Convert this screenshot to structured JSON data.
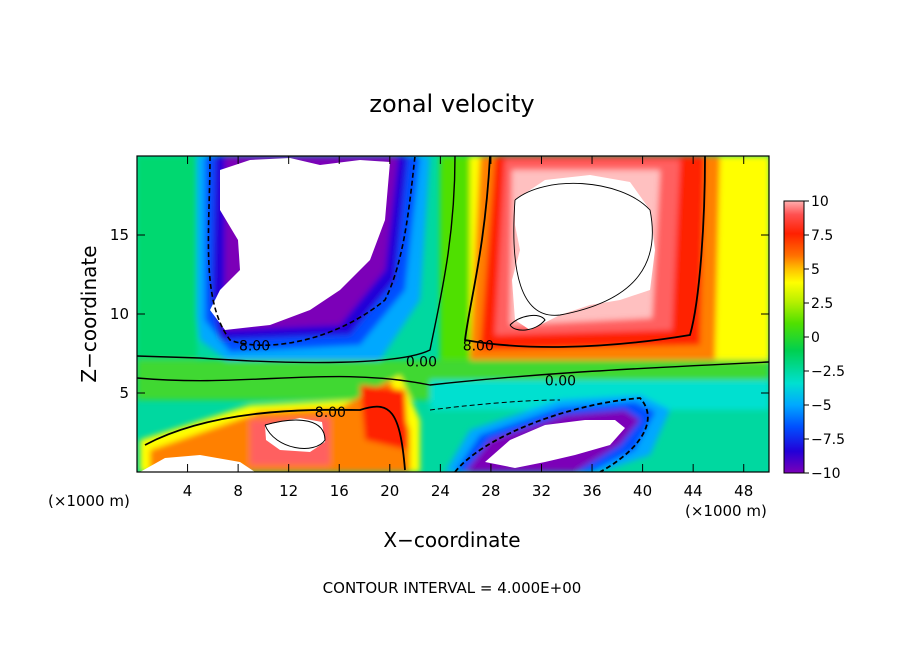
{
  "title": "zonal velocity",
  "footer": "CONTOUR INTERVAL = 4.000E+00",
  "chart_data": {
    "type": "heatmap",
    "title": "zonal velocity",
    "xlabel": "X−coordinate",
    "ylabel": "Z−coordinate",
    "x_unit_left": "(×1000 m)",
    "x_unit_right": "(×1000 m)",
    "xlim": [
      0,
      50
    ],
    "ylim": [
      0,
      20
    ],
    "x_ticks": [
      4,
      8,
      12,
      16,
      20,
      24,
      28,
      32,
      36,
      40,
      44,
      48
    ],
    "x_tick_labels": [
      "4",
      "8",
      "12",
      "16",
      "20",
      "24",
      "28",
      "32",
      "36",
      "40",
      "44",
      "48"
    ],
    "y_ticks": [
      5,
      10,
      15
    ],
    "y_tick_labels": [
      "5",
      "10",
      "15"
    ],
    "colorbar": {
      "range": [
        -10,
        10
      ],
      "ticks": [
        10,
        7.5,
        5,
        2.5,
        0,
        -2.5,
        -5,
        -7.5,
        -10
      ],
      "tick_labels": [
        "10",
        "7.5",
        "5",
        "2.5",
        "0",
        "−2.5",
        "−5",
        "−7.5",
        "−10"
      ],
      "colors": [
        "#7b00b8",
        "#2200d8",
        "#0050ff",
        "#00a8ff",
        "#00e0d0",
        "#00d050",
        "#50e000",
        "#b8f000",
        "#ffff00",
        "#ffc000",
        "#ff7000",
        "#ff2000",
        "#ff5050",
        "#ffb0b0"
      ]
    },
    "contour_interval": 4.0,
    "contour_labels": [
      {
        "text": "8.00",
        "x": 9.3,
        "z": 8.0
      },
      {
        "text": "0.00",
        "x": 22.5,
        "z": 7.0
      },
      {
        "text": "8.00",
        "x": 27.0,
        "z": 8.0
      },
      {
        "text": "0.00",
        "x": 33.5,
        "z": 5.8
      },
      {
        "text": "8.00",
        "x": 15.3,
        "z": 3.8
      }
    ]
  }
}
